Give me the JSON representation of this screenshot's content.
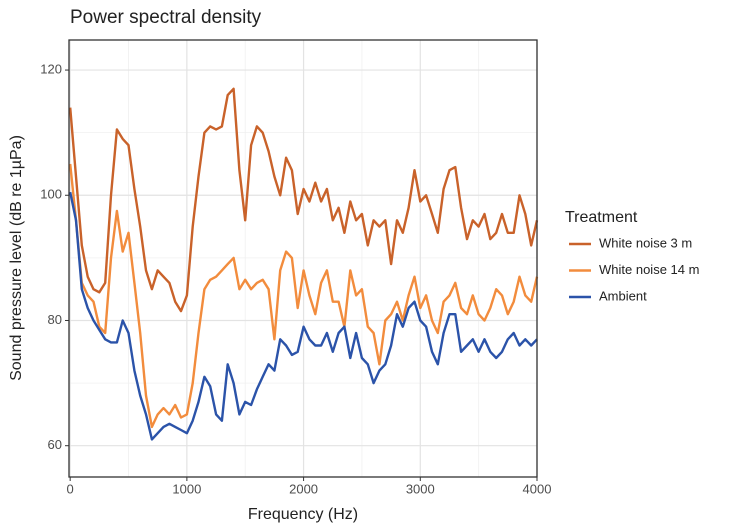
{
  "chart_data": {
    "type": "line",
    "title": "Power spectral density",
    "x_label": "Frequency (Hz)",
    "y_label": "Sound pressure level (dB re 1µPa)",
    "legend_title": "Treatment",
    "legend_position": "right",
    "grid": true,
    "x": [
      0,
      50,
      100,
      150,
      200,
      250,
      300,
      350,
      400,
      450,
      500,
      550,
      600,
      650,
      700,
      750,
      800,
      850,
      900,
      950,
      1000,
      1050,
      1100,
      1150,
      1200,
      1250,
      1300,
      1350,
      1400,
      1450,
      1500,
      1550,
      1600,
      1650,
      1700,
      1750,
      1800,
      1850,
      1900,
      1950,
      2000,
      2050,
      2100,
      2150,
      2200,
      2250,
      2300,
      2350,
      2400,
      2450,
      2500,
      2550,
      2600,
      2650,
      2700,
      2750,
      2800,
      2850,
      2900,
      2950,
      3000,
      3050,
      3100,
      3150,
      3200,
      3250,
      3300,
      3350,
      3400,
      3450,
      3500,
      3550,
      3600,
      3650,
      3700,
      3750,
      3800,
      3850,
      3900,
      3950,
      4000
    ],
    "series": [
      {
        "name": "White noise 3 m",
        "color": "#c9622a",
        "values": [
          114,
          103,
          92,
          87,
          85,
          84.5,
          86,
          100,
          110.5,
          109,
          108,
          101,
          95,
          88,
          85,
          88,
          87,
          86,
          83,
          81.5,
          84,
          95,
          103,
          110,
          111,
          110.5,
          111,
          116,
          117,
          104,
          96,
          108,
          111,
          110,
          107,
          103,
          100,
          106,
          104,
          97,
          101,
          99,
          102,
          99,
          101,
          96,
          98,
          94,
          99,
          96,
          97,
          92,
          96,
          95,
          96,
          89,
          96,
          94,
          98,
          104,
          99,
          100,
          97,
          94,
          101,
          104,
          104.5,
          98,
          93,
          96,
          95,
          97,
          93,
          94,
          97,
          94,
          94,
          100,
          97,
          92,
          96
        ]
      },
      {
        "name": "White noise 14 m",
        "color": "#f28c3d",
        "values": [
          105,
          96,
          86,
          84,
          83,
          79,
          78,
          90,
          97.5,
          91,
          94,
          86,
          78,
          68,
          63,
          65,
          66,
          65,
          66.5,
          64.5,
          65,
          70,
          78,
          85,
          86.5,
          87,
          88,
          89,
          90,
          85,
          86.5,
          85,
          86,
          86.5,
          85,
          77,
          88,
          91,
          90,
          82,
          88,
          84,
          81,
          86,
          88,
          83,
          83,
          79,
          88,
          84,
          85,
          79,
          78,
          73,
          80,
          81,
          83,
          80,
          84,
          87,
          82,
          84,
          80,
          78,
          83,
          84,
          86,
          82,
          81,
          84,
          81,
          80,
          82,
          85,
          84,
          81,
          83,
          87,
          84,
          83,
          87
        ]
      },
      {
        "name": "Ambient",
        "color": "#2b53a9",
        "values": [
          100.5,
          96,
          85,
          82,
          80,
          78.5,
          77,
          76.5,
          76.5,
          80,
          78,
          72,
          68,
          65,
          61,
          62,
          63,
          63.5,
          63,
          62.5,
          62,
          64,
          67,
          71,
          69.5,
          65,
          64,
          73,
          70,
          65,
          67,
          66.5,
          69,
          71,
          73,
          72,
          77,
          76,
          74.5,
          75,
          79,
          77,
          76,
          76,
          78,
          75,
          78,
          79,
          74,
          78,
          74,
          73,
          70,
          72,
          73,
          76,
          81,
          79,
          82,
          83,
          80,
          79,
          75,
          73,
          78,
          81,
          81,
          75,
          76,
          77,
          75,
          77,
          75,
          74,
          75,
          77,
          78,
          76,
          77,
          76,
          77
        ]
      }
    ],
    "xlim": [
      -10,
      4000
    ],
    "ylim": [
      55,
      124.8
    ],
    "xticks": [
      0,
      1000,
      2000,
      3000,
      4000
    ],
    "yticks": [
      60,
      80,
      100,
      120
    ]
  }
}
